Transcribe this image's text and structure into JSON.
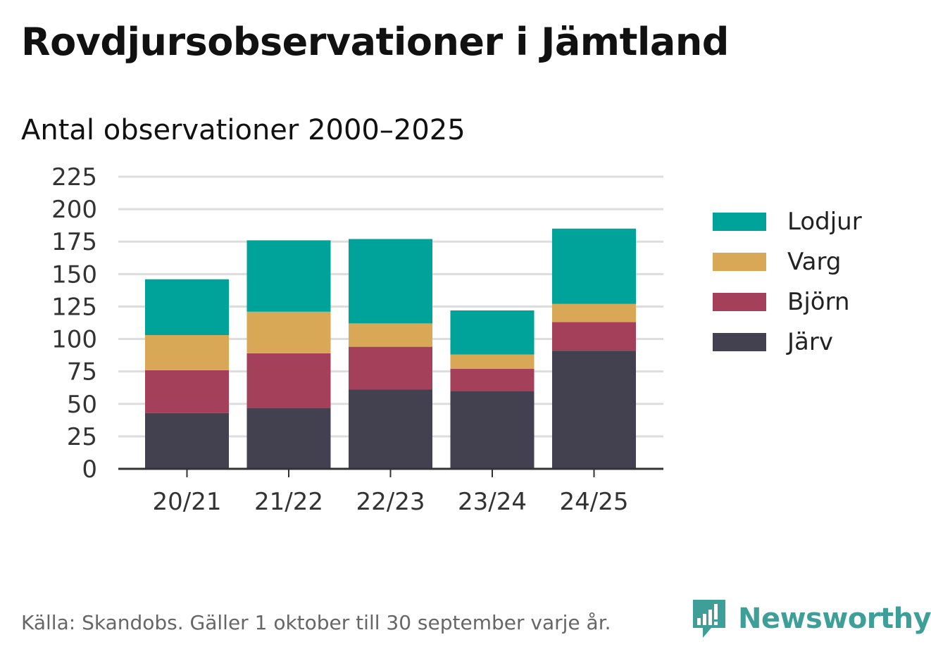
{
  "header": {
    "title": "Rovdjursobservationer i Jämtland",
    "subtitle": "Antal observationer 2000–2025"
  },
  "chart_data": {
    "type": "bar",
    "stacked": true,
    "title": "Rovdjursobservationer i Jämtland",
    "subtitle": "Antal observationer 2000–2025",
    "xlabel": "",
    "ylabel": "",
    "ylim": [
      0,
      225
    ],
    "yticks": [
      0,
      25,
      50,
      75,
      100,
      125,
      150,
      175,
      200,
      225
    ],
    "grid": true,
    "legend_position": "right",
    "categories": [
      "20/21",
      "21/22",
      "22/23",
      "23/24",
      "24/25"
    ],
    "series": [
      {
        "name": "Järv",
        "color": "#43404f",
        "values": [
          43,
          47,
          61,
          60,
          91
        ]
      },
      {
        "name": "Björn",
        "color": "#a4405a",
        "values": [
          33,
          42,
          33,
          17,
          22
        ]
      },
      {
        "name": "Varg",
        "color": "#d8a856",
        "values": [
          27,
          32,
          18,
          11,
          14
        ]
      },
      {
        "name": "Lodjur",
        "color": "#00a39a",
        "values": [
          43,
          55,
          65,
          34,
          58
        ]
      }
    ]
  },
  "footer": {
    "source": "Källa: Skandobs. Gäller 1 oktober till 30 september varje år.",
    "brand": "Newsworthy"
  },
  "colors": {
    "brand": "#3d9f98",
    "grid": "#dddddd",
    "axis": "#333333"
  }
}
